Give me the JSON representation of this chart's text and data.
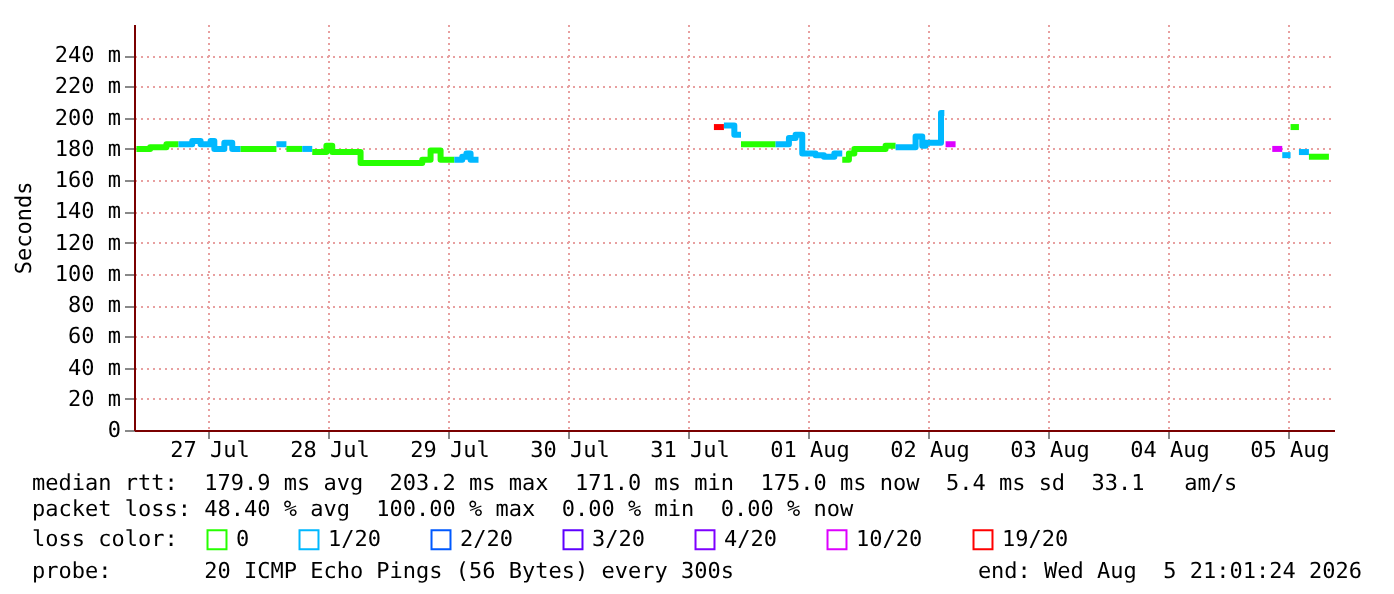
{
  "chart_data": {
    "type": "step",
    "ylabel": "Seconds",
    "legend_title": "loss color:",
    "legend": "bottom",
    "grid": true,
    "xlim": [
      "2026-07-26T21:01",
      "2026-08-05T21:01"
    ],
    "xticks": [
      {
        "value": "2026-07-27T12:00",
        "label": "27 Jul"
      },
      {
        "value": "2026-07-28T12:00",
        "label": "28 Jul"
      },
      {
        "value": "2026-07-29T12:00",
        "label": "29 Jul"
      },
      {
        "value": "2026-07-30T12:00",
        "label": "30 Jul"
      },
      {
        "value": "2026-07-31T12:00",
        "label": "31 Jul"
      },
      {
        "value": "2026-08-01T12:00",
        "label": "01 Aug"
      },
      {
        "value": "2026-08-02T12:00",
        "label": "02 Aug"
      },
      {
        "value": "2026-08-03T12:00",
        "label": "03 Aug"
      },
      {
        "value": "2026-08-04T12:00",
        "label": "04 Aug"
      },
      {
        "value": "2026-08-05T12:00",
        "label": "05 Aug"
      }
    ],
    "ylim": [
      0,
      260
    ],
    "yticks": [
      0,
      {
        "value": 20,
        "label": "20 m"
      },
      {
        "value": 40,
        "label": "40 m"
      },
      {
        "value": 60,
        "label": "60 m"
      },
      {
        "value": 80,
        "label": "80 m"
      },
      {
        "value": 100,
        "label": "100 m"
      },
      {
        "value": 120,
        "label": "120 m"
      },
      {
        "value": 140,
        "label": "140 m"
      },
      {
        "value": 160,
        "label": "160 m"
      },
      {
        "value": 180,
        "label": "180 m"
      },
      {
        "value": 200,
        "label": "200 m"
      },
      {
        "value": 220,
        "label": "220 m"
      },
      {
        "value": 240,
        "label": "240 m"
      }
    ],
    "series": [
      {
        "name": "0",
        "color": "#26ff00",
        "x": [
          "2026-07-26T21:30",
          "2026-07-27T00:15",
          "2026-07-27T03:30",
          "2026-07-27T05:55"
        ],
        "values": [
          180,
          181,
          183,
          183
        ]
      },
      {
        "name": "1/20",
        "color": "#00b8ff",
        "x": [
          "2026-07-27T05:55",
          "2026-07-27T08:40",
          "2026-07-27T10:20",
          "2026-07-27T12:20",
          "2026-07-27T13:05",
          "2026-07-27T15:05",
          "2026-07-27T16:40",
          "2026-07-27T18:20"
        ],
        "values": [
          183,
          185,
          183,
          185,
          180,
          184,
          180,
          180
        ]
      },
      {
        "name": "2/20",
        "color": "#0059ff"
      },
      {
        "name": "3/20",
        "color": "#5e00ff"
      },
      {
        "name": "4/20",
        "color": "#7e00ff"
      },
      {
        "name": "10/20",
        "color": "#dd00ff",
        "x": [
          "2026-08-02T15:20",
          "2026-08-02T17:20"
        ],
        "values": [
          183,
          183
        ]
      },
      {
        "name": "19/20",
        "color": "#ff0000",
        "x": [
          "2026-07-31T17:00",
          "2026-07-31T19:00"
        ],
        "values": [
          194,
          194
        ]
      },
      {
        "color": "#26ff00",
        "x": [
          "2026-07-27T18:20",
          "2026-07-28T01:30"
        ],
        "values": [
          180,
          180
        ]
      },
      {
        "color": "#00b8ff",
        "x": [
          "2026-07-28T01:30",
          "2026-07-28T03:30"
        ],
        "values": [
          183,
          183
        ]
      },
      {
        "color": "#26ff00",
        "x": [
          "2026-07-28T03:30",
          "2026-07-28T06:40"
        ],
        "values": [
          180,
          180
        ]
      },
      {
        "color": "#00b8ff",
        "x": [
          "2026-07-28T06:40",
          "2026-07-28T08:40"
        ],
        "values": [
          180,
          180
        ]
      },
      {
        "color": "#26ff00",
        "x": [
          "2026-07-28T08:40",
          "2026-07-28T11:30",
          "2026-07-28T12:40",
          "2026-07-28T18:20",
          "2026-07-29T06:40",
          "2026-07-29T08:20",
          "2026-07-29T10:20",
          "2026-07-29T13:05"
        ],
        "values": [
          178,
          182,
          178,
          171,
          173,
          179,
          173,
          173
        ]
      },
      {
        "color": "#00b8ff",
        "x": [
          "2026-07-29T13:05",
          "2026-07-29T14:40",
          "2026-07-29T15:30",
          "2026-07-29T16:20",
          "2026-07-29T17:55"
        ],
        "values": [
          173,
          175,
          177,
          173,
          173
        ]
      },
      {
        "color": "#00b8ff",
        "x": [
          "2026-07-31T19:00",
          "2026-07-31T21:05",
          "2026-07-31T22:25"
        ],
        "values": [
          195,
          189,
          189
        ]
      },
      {
        "color": "#26ff00",
        "x": [
          "2026-07-31T22:25",
          "2026-08-01T05:20"
        ],
        "values": [
          183,
          183
        ]
      },
      {
        "color": "#00b8ff",
        "x": [
          "2026-08-01T05:20",
          "2026-08-01T08:00",
          "2026-08-01T09:20",
          "2026-08-01T10:40",
          "2026-08-01T13:20",
          "2026-08-01T15:00",
          "2026-08-01T17:05",
          "2026-08-01T18:40"
        ],
        "values": [
          183,
          187,
          189,
          177,
          176,
          175,
          177,
          177
        ]
      },
      {
        "color": "#26ff00",
        "x": [
          "2026-08-01T18:40",
          "2026-08-01T20:00",
          "2026-08-01T21:05",
          "2026-08-02T03:20",
          "2026-08-02T05:20"
        ],
        "values": [
          173,
          177,
          180,
          182,
          182
        ]
      },
      {
        "color": "#00b8ff",
        "x": [
          "2026-08-02T05:20",
          "2026-08-02T09:20",
          "2026-08-02T10:40",
          "2026-08-02T11:20",
          "2026-08-02T14:00",
          "2026-08-02T14:25",
          "2026-08-02T15:05"
        ],
        "values": [
          181,
          188,
          182,
          184,
          184,
          203,
          203
        ]
      },
      {
        "color": "#dd00ff",
        "x": [
          "2026-08-05T08:40",
          "2026-08-05T10:40"
        ],
        "values": [
          180,
          180
        ]
      },
      {
        "color": "#00b8ff",
        "x": [
          "2026-08-05T10:40",
          "2026-08-05T12:20"
        ],
        "values": [
          176,
          176
        ]
      },
      {
        "color": "#26ff00",
        "x": [
          "2026-08-05T12:20",
          "2026-08-05T14:00"
        ],
        "values": [
          194,
          194
        ]
      },
      {
        "color": "#00b8ff",
        "x": [
          "2026-08-05T14:00",
          "2026-08-05T16:00"
        ],
        "values": [
          178,
          178
        ]
      },
      {
        "color": "#26ff00",
        "x": [
          "2026-08-05T16:00",
          "2026-08-05T20:00"
        ],
        "values": [
          175,
          175
        ]
      }
    ],
    "annotations": [
      "median rtt:  179.9 ms avg  203.2 ms max  171.0 ms min  175.0 ms now  5.4 ms sd  33.1   am/s",
      "packet loss: 48.40 % avg  100.00 % max  0.00 % min  0.00 % now",
      "probe:       20 ICMP Echo Pings (56 Bytes) every 300s",
      "end: Wed Aug  5 21:01:24 2026"
    ]
  }
}
